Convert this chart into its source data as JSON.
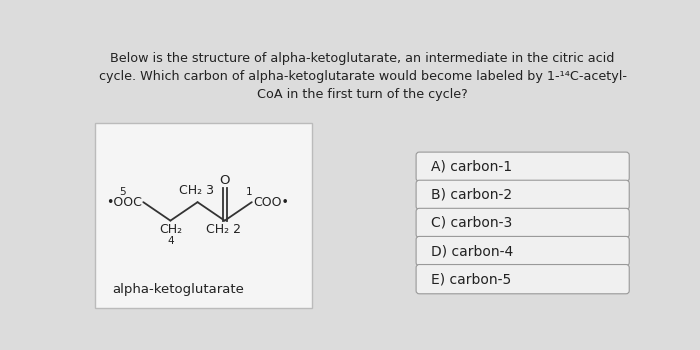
{
  "title_line1": "Below is the structure of alpha-ketoglutarate, an intermediate in the citric acid",
  "title_line2": "cycle. Which carbon of alpha-ketoglutarate would become labeled by 1-¹⁴C-acetyl-",
  "title_line3": "CoA in the first turn of the cycle?",
  "answer_options": [
    "A) carbon-1",
    "B) carbon-2",
    "C) carbon-3",
    "D) carbon-4",
    "E) carbon-5"
  ],
  "molecule_label": "alpha-ketoglutarate",
  "bg_color": "#dcdcdc",
  "box_color": "#f5f5f5",
  "text_color": "#222222",
  "answer_box_color": "#f0f0f0",
  "answer_border_color": "#999999",
  "title_fontsize": 9.2,
  "answer_fontsize": 10,
  "mol_fontsize": 9.0,
  "mol_num_fontsize": 7.5
}
